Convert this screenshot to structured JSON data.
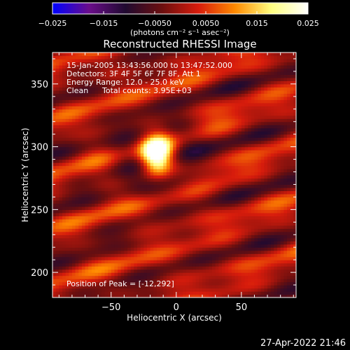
{
  "chart_data": {
    "type": "heatmap",
    "title": "Reconstructed RHESSI Image",
    "xlabel": "Heliocentric X (arcsec)",
    "ylabel": "Heliocentric Y (arcsec)",
    "xlim": [
      -95,
      92
    ],
    "ylim": [
      180,
      375
    ],
    "x_ticks": [
      -50,
      0,
      50
    ],
    "y_ticks": [
      200,
      250,
      300,
      350
    ],
    "colorbar": {
      "label": "(photons cm⁻² s⁻¹ asec⁻²)",
      "range": [
        -0.025,
        0.025
      ],
      "tick_labels": [
        "−0.025",
        "−0.015",
        "−0.0050",
        "0.0050",
        "0.015",
        "0.025"
      ],
      "tick_values": [
        -0.025,
        -0.015,
        -0.005,
        0.005,
        0.015,
        0.025
      ],
      "stops": [
        "#0000ff",
        "#6a0d8a",
        "#200a30",
        "#6b0f0f",
        "#d81c0c",
        "#ff8a00",
        "#ffff80",
        "#ffffff"
      ]
    },
    "annotations": {
      "time": "15-Jan-2005 13:43:56.000 to 13:47:52.000",
      "detectors": "Detectors: 3F 4F 5F 6F 7F 8F, Att 1",
      "energy": "Energy Range: 12.0 - 25.0 keV",
      "algorithm": "Clean",
      "counts": "Total counts: 3.95E+03",
      "peak": "Position of Peak = [-12,292]"
    },
    "peak": {
      "x": -12,
      "y": 292,
      "value": 0.025
    },
    "source": {
      "x": -15,
      "y": 294,
      "sigma_x": 8,
      "sigma_y": 11
    },
    "stripe_angle_deg": 20
  },
  "footer": {
    "date": "27-Apr-2022 21:46"
  }
}
